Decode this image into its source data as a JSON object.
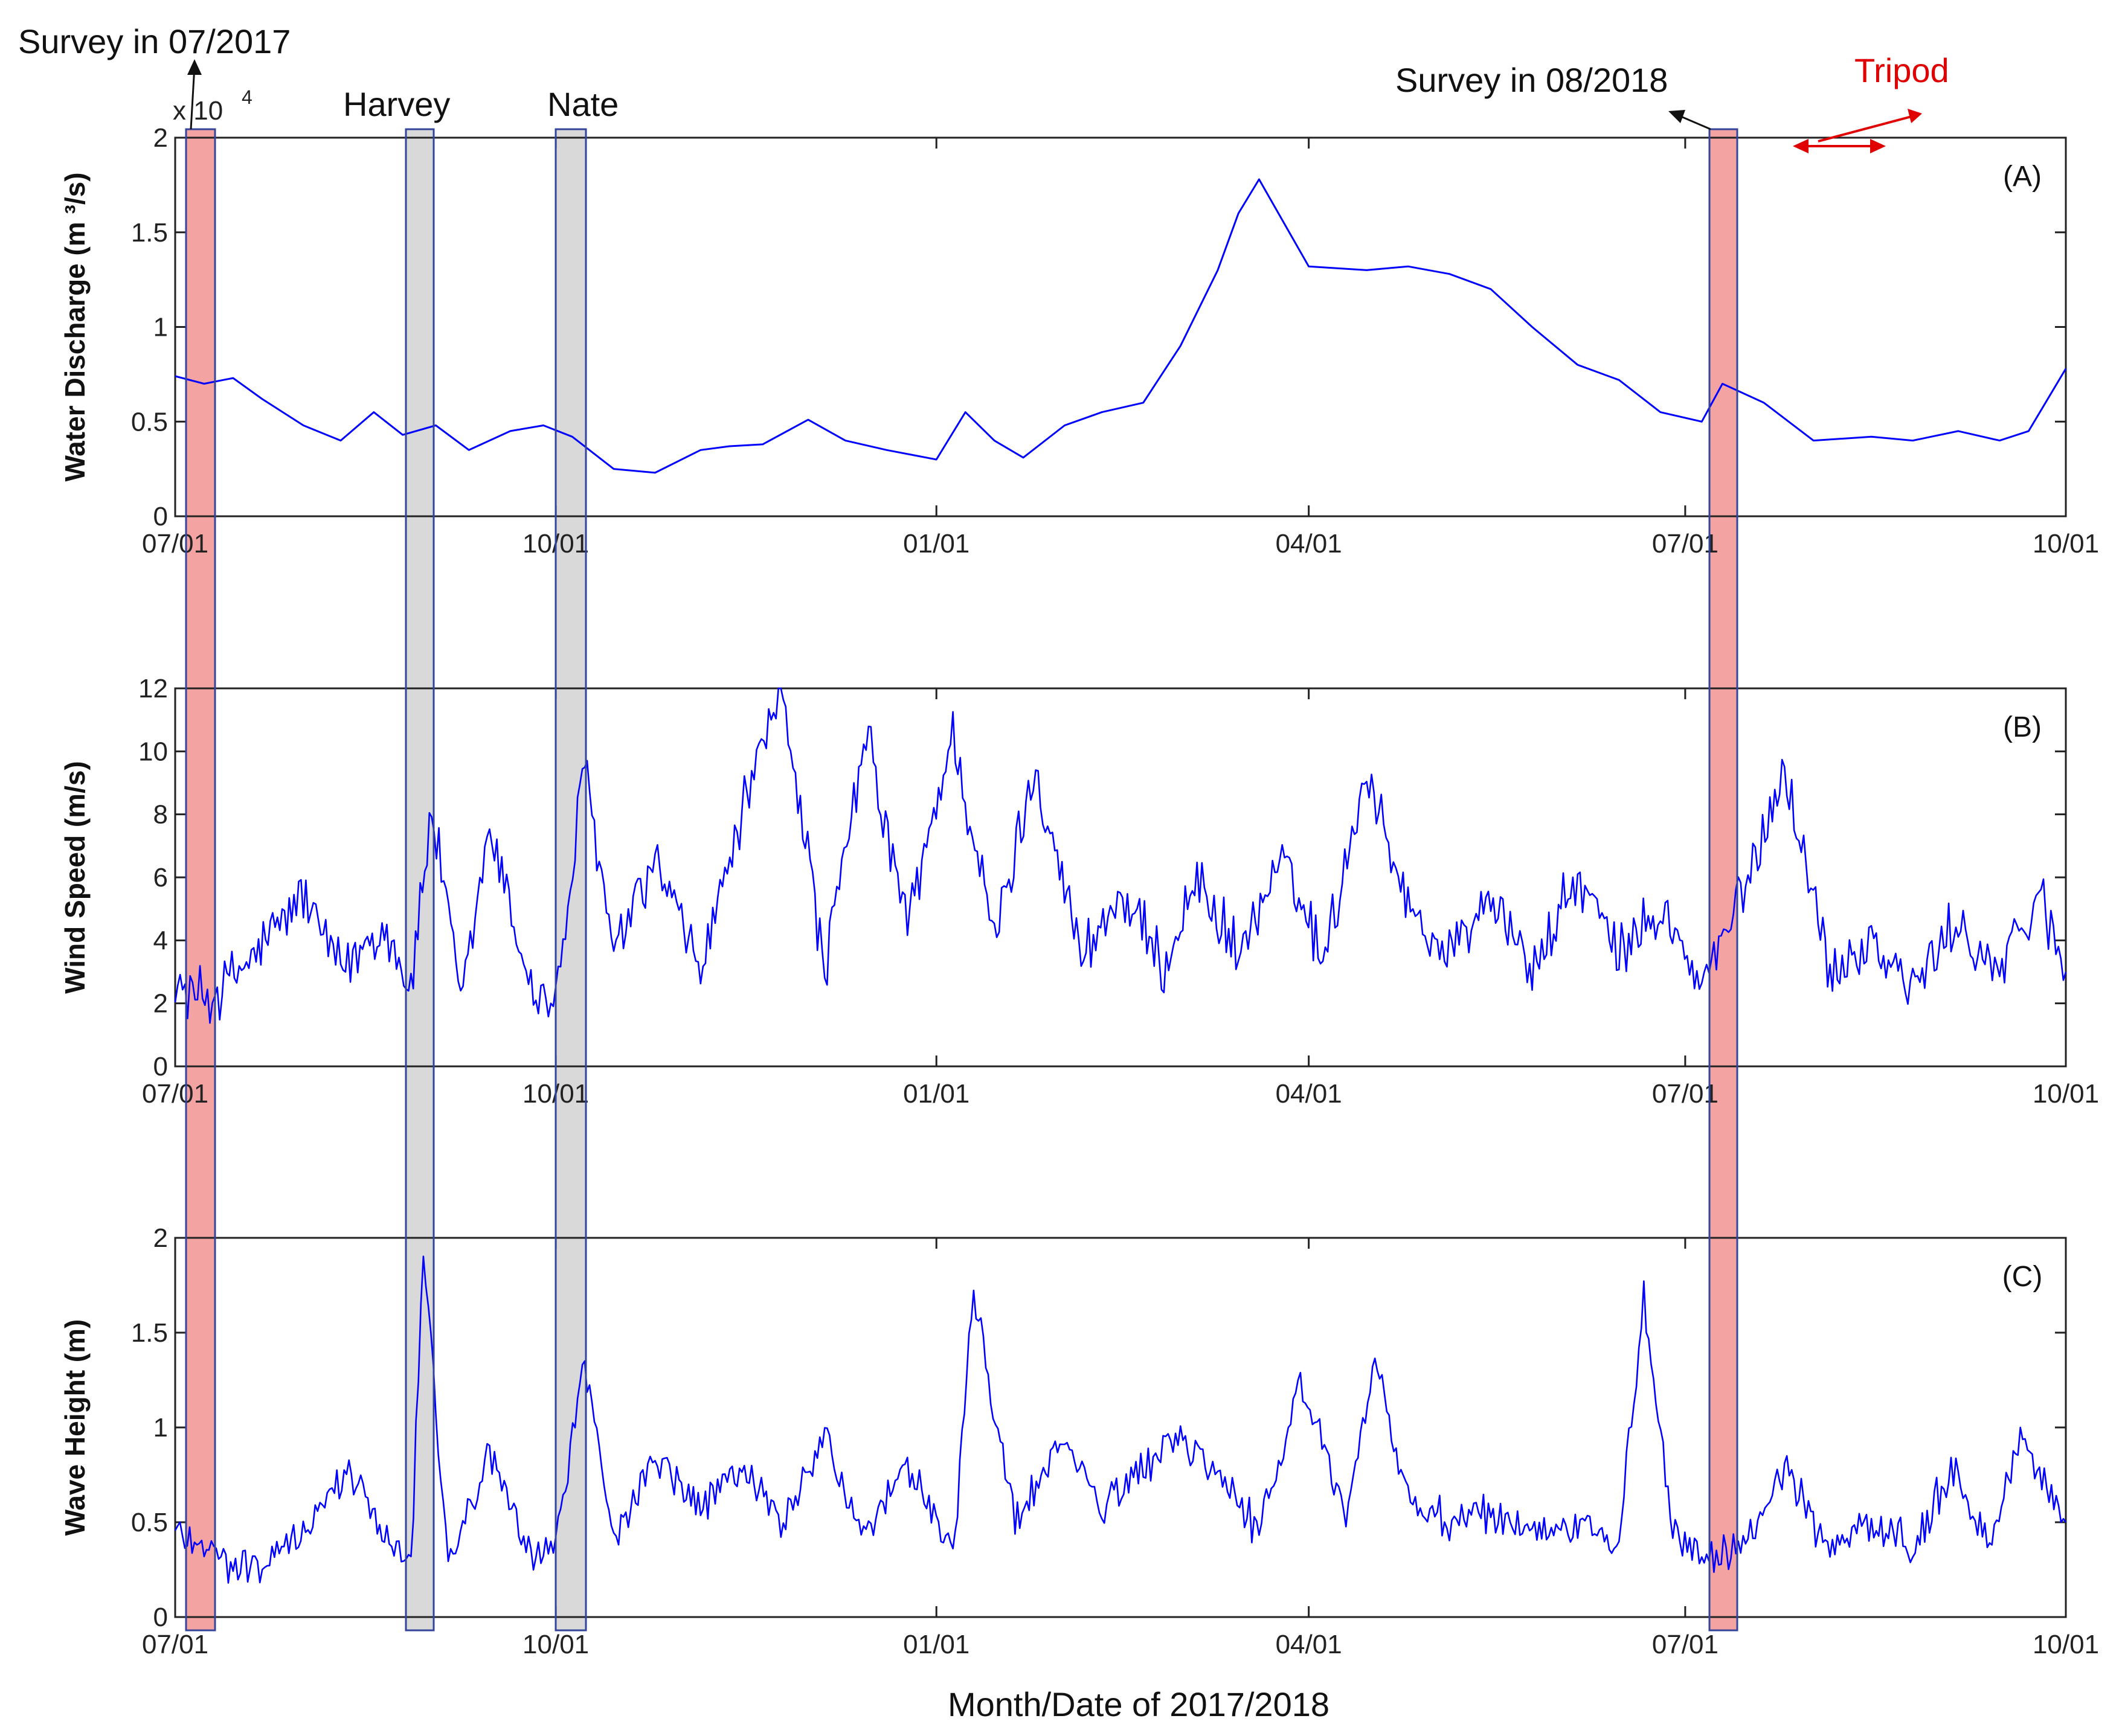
{
  "figure": {
    "xlabel": "Month/Date of 2017/2018",
    "exponent_base": "x 10",
    "exponent_power": "4",
    "annotations": {
      "survey_2017": "Survey in 07/2017",
      "harvey": "Harvey",
      "nate": "Nate",
      "survey_2018": "Survey in 08/2018",
      "tripod": "Tripod"
    },
    "colors": {
      "series": "#0000ff",
      "survey_band": "#f4a3a3",
      "storm_band": "#d9d9d9",
      "band_border": "#33449a",
      "tripod": "#e00000"
    }
  },
  "chart_data": [
    {
      "type": "line",
      "panel_label": "(A)",
      "ylabel": "Water Discharge (m ³/s)",
      "y_multiplier": "x10^4",
      "xlim": [
        "2017-07-01",
        "2018-10-01"
      ],
      "xticks": [
        "07/01",
        "10/01",
        "01/01",
        "04/01",
        "07/01",
        "10/01"
      ],
      "ylim": [
        0,
        2
      ],
      "yticks": [
        "0",
        "0.5",
        "1",
        "1.5",
        "2"
      ],
      "series": [
        {
          "x": [
            "2017-07-01",
            "2017-07-08",
            "2017-07-15",
            "2017-07-22",
            "2017-08-01",
            "2017-08-10",
            "2017-08-18",
            "2017-08-25",
            "2017-09-02",
            "2017-09-10",
            "2017-09-20",
            "2017-09-28",
            "2017-10-05",
            "2017-10-15",
            "2017-10-25",
            "2017-11-05",
            "2017-11-12",
            "2017-11-20",
            "2017-12-01",
            "2017-12-10",
            "2017-12-20",
            "2018-01-01",
            "2018-01-08",
            "2018-01-15",
            "2018-01-22",
            "2018-02-01",
            "2018-02-10",
            "2018-02-20",
            "2018-03-01",
            "2018-03-10",
            "2018-03-15",
            "2018-03-20",
            "2018-04-01",
            "2018-04-15",
            "2018-04-25",
            "2018-05-05",
            "2018-05-15",
            "2018-05-25",
            "2018-06-05",
            "2018-06-15",
            "2018-06-25",
            "2018-07-05",
            "2018-07-10",
            "2018-07-20",
            "2018-08-01",
            "2018-08-15",
            "2018-08-25",
            "2018-09-05",
            "2018-09-15",
            "2018-09-22",
            "2018-10-01"
          ],
          "y": [
            0.74,
            0.7,
            0.73,
            0.62,
            0.48,
            0.4,
            0.55,
            0.43,
            0.48,
            0.35,
            0.45,
            0.48,
            0.42,
            0.25,
            0.23,
            0.35,
            0.37,
            0.38,
            0.51,
            0.4,
            0.35,
            0.3,
            0.55,
            0.4,
            0.31,
            0.48,
            0.55,
            0.6,
            0.9,
            1.3,
            1.6,
            1.78,
            1.32,
            1.3,
            1.32,
            1.28,
            1.2,
            1.0,
            0.8,
            0.72,
            0.55,
            0.5,
            0.7,
            0.6,
            0.4,
            0.42,
            0.4,
            0.45,
            0.4,
            0.45,
            0.78
          ]
        }
      ]
    },
    {
      "type": "line",
      "panel_label": "(B)",
      "ylabel": "Wind Speed (m/s)",
      "xlim": [
        "2017-07-01",
        "2018-10-01"
      ],
      "xticks": [
        "07/01",
        "10/01",
        "01/01",
        "04/01",
        "07/01",
        "10/01"
      ],
      "ylim": [
        0,
        12
      ],
      "yticks": [
        "0",
        "2",
        "4",
        "6",
        "8",
        "10",
        "12"
      ],
      "series": [
        {
          "x": [
            "2017-07-01",
            "2017-07-10",
            "2017-07-20",
            "2017-08-01",
            "2017-08-10",
            "2017-08-20",
            "2017-08-27",
            "2017-09-01",
            "2017-09-08",
            "2017-09-15",
            "2017-09-25",
            "2017-10-01",
            "2017-10-08",
            "2017-10-15",
            "2017-10-25",
            "2017-11-05",
            "2017-11-15",
            "2017-11-25",
            "2017-12-05",
            "2017-12-15",
            "2017-12-25",
            "2018-01-05",
            "2018-01-15",
            "2018-01-25",
            "2018-02-05",
            "2018-02-15",
            "2018-02-25",
            "2018-03-05",
            "2018-03-15",
            "2018-03-25",
            "2018-04-05",
            "2018-04-15",
            "2018-04-25",
            "2018-05-05",
            "2018-05-15",
            "2018-05-25",
            "2018-06-05",
            "2018-06-15",
            "2018-06-25",
            "2018-07-05",
            "2018-07-15",
            "2018-07-25",
            "2018-08-05",
            "2018-08-15",
            "2018-08-25",
            "2018-09-05",
            "2018-09-15",
            "2018-09-25",
            "2018-10-01"
          ],
          "y": [
            2.5,
            2.2,
            3.5,
            5.5,
            3.0,
            4.5,
            2.5,
            8.2,
            2.0,
            7.5,
            2.5,
            2.0,
            9.5,
            3.5,
            6.5,
            3.0,
            8.0,
            12.0,
            3.0,
            10.5,
            4.5,
            10.5,
            4.0,
            9.5,
            3.5,
            5.5,
            3.0,
            6.0,
            3.5,
            6.5,
            3.5,
            9.5,
            5.0,
            3.5,
            5.5,
            3.0,
            6.0,
            3.5,
            5.0,
            2.5,
            5.5,
            9.5,
            3.0,
            4.0,
            2.5,
            4.5,
            3.0,
            5.5,
            3.0
          ]
        }
      ]
    },
    {
      "type": "line",
      "panel_label": "(C)",
      "ylabel": "Wave Height (m)",
      "xlim": [
        "2017-07-01",
        "2018-10-01"
      ],
      "xticks": [
        "07/01",
        "10/01",
        "01/01",
        "04/01",
        "07/01",
        "10/01"
      ],
      "ylim": [
        0,
        2
      ],
      "yticks": [
        "0",
        "0.5",
        "1",
        "1.5",
        "2"
      ],
      "series": [
        {
          "x": [
            "2017-07-01",
            "2017-07-08",
            "2017-07-15",
            "2017-07-25",
            "2017-08-05",
            "2017-08-12",
            "2017-08-20",
            "2017-08-27",
            "2017-08-30",
            "2017-09-05",
            "2017-09-15",
            "2017-09-25",
            "2017-10-01",
            "2017-10-08",
            "2017-10-15",
            "2017-10-25",
            "2017-11-05",
            "2017-11-15",
            "2017-11-25",
            "2017-12-05",
            "2017-12-15",
            "2017-12-25",
            "2018-01-05",
            "2018-01-10",
            "2018-01-20",
            "2018-02-01",
            "2018-02-10",
            "2018-02-20",
            "2018-03-01",
            "2018-03-10",
            "2018-03-20",
            "2018-03-30",
            "2018-04-10",
            "2018-04-17",
            "2018-04-25",
            "2018-05-05",
            "2018-05-15",
            "2018-05-25",
            "2018-06-05",
            "2018-06-15",
            "2018-06-21",
            "2018-06-28",
            "2018-07-05",
            "2018-07-15",
            "2018-07-25",
            "2018-08-05",
            "2018-08-15",
            "2018-08-25",
            "2018-09-05",
            "2018-09-12",
            "2018-09-20",
            "2018-10-01"
          ],
          "y": [
            0.45,
            0.4,
            0.25,
            0.3,
            0.55,
            0.8,
            0.45,
            0.3,
            1.95,
            0.3,
            0.85,
            0.3,
            0.4,
            1.35,
            0.4,
            0.85,
            0.55,
            0.8,
            0.5,
            0.95,
            0.4,
            0.8,
            0.35,
            1.7,
            0.5,
            0.95,
            0.55,
            0.8,
            0.95,
            0.75,
            0.45,
            1.25,
            0.5,
            1.35,
            0.6,
            0.5,
            0.55,
            0.45,
            0.5,
            0.4,
            1.65,
            0.45,
            0.3,
            0.35,
            0.8,
            0.35,
            0.5,
            0.4,
            0.8,
            0.35,
            0.95,
            0.5
          ]
        }
      ]
    }
  ]
}
